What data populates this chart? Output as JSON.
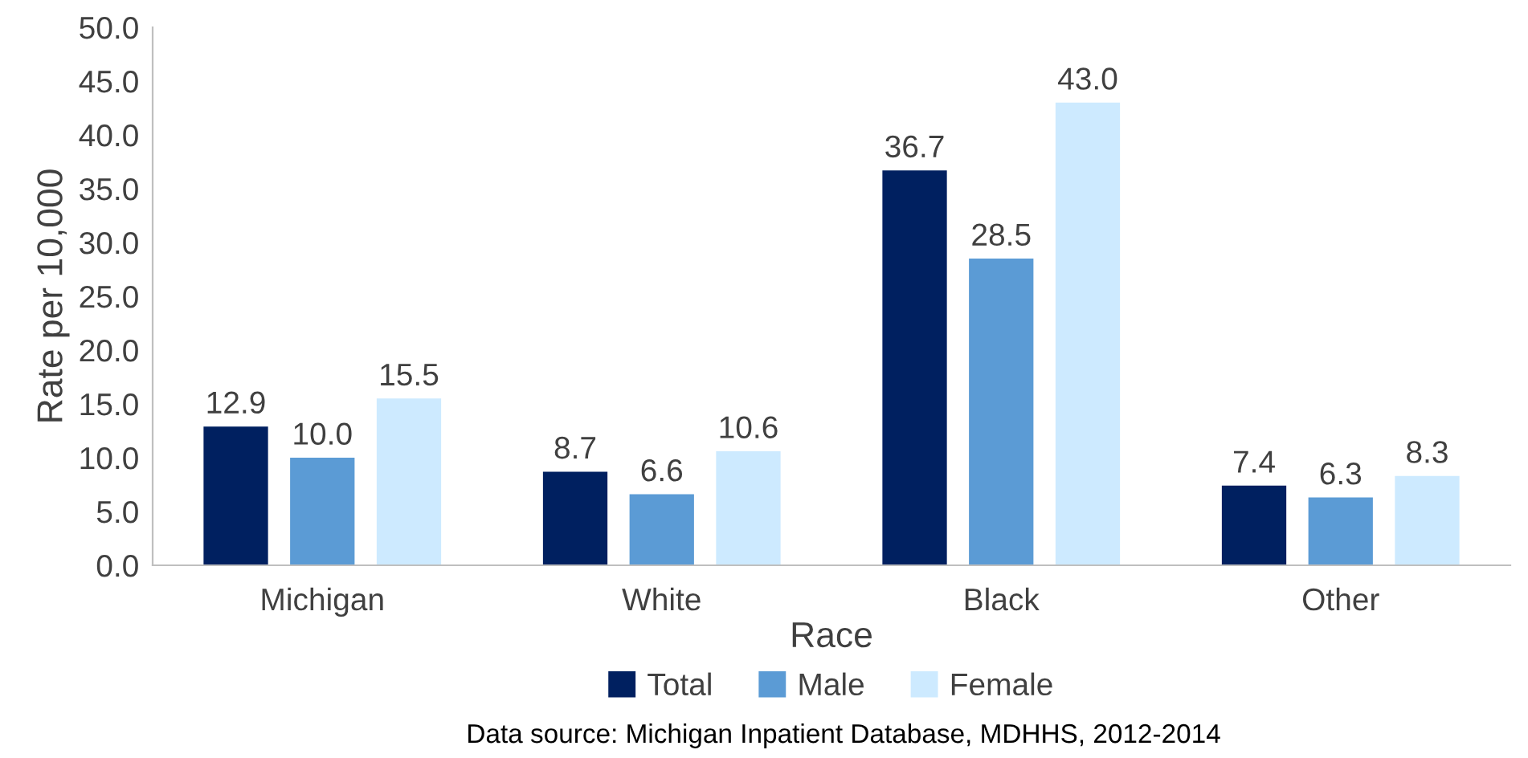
{
  "chart_data": {
    "type": "bar",
    "xlabel": "Race",
    "ylabel": "Rate per 10,000",
    "categories": [
      "Michigan",
      "White",
      "Black",
      "Other"
    ],
    "series": [
      {
        "name": "Total",
        "color": "#002060",
        "values": [
          12.9,
          8.7,
          36.7,
          7.4
        ],
        "value_labels": [
          "12.9",
          "8.7",
          "36.7",
          "7.4"
        ]
      },
      {
        "name": "Male",
        "color": "#5b9bd5",
        "values": [
          10.0,
          6.6,
          28.5,
          6.3
        ],
        "value_labels": [
          "10.0",
          "6.6",
          "28.5",
          "6.3"
        ]
      },
      {
        "name": "Female",
        "color": "#cdeaff",
        "values": [
          15.5,
          10.6,
          43.0,
          8.3
        ],
        "value_labels": [
          "15.5",
          "10.6",
          "43.0",
          "8.3"
        ]
      }
    ],
    "ylim": [
      0,
      50
    ],
    "yticks": [
      {
        "value": 0,
        "label": "0.0"
      },
      {
        "value": 5,
        "label": "5.0"
      },
      {
        "value": 10,
        "label": "10.0"
      },
      {
        "value": 15,
        "label": "15.0"
      },
      {
        "value": 20,
        "label": "20.0"
      },
      {
        "value": 25,
        "label": "25.0"
      },
      {
        "value": 30,
        "label": "30.0"
      },
      {
        "value": 35,
        "label": "35.0"
      },
      {
        "value": 40,
        "label": "40.0"
      },
      {
        "value": 45,
        "label": "45.0"
      },
      {
        "value": 50,
        "label": "50.0"
      }
    ],
    "grid": false,
    "legend": "bottom",
    "annotations": [
      "Data source: Michigan Inpatient Database, MDHHS, 2012-2014"
    ]
  }
}
